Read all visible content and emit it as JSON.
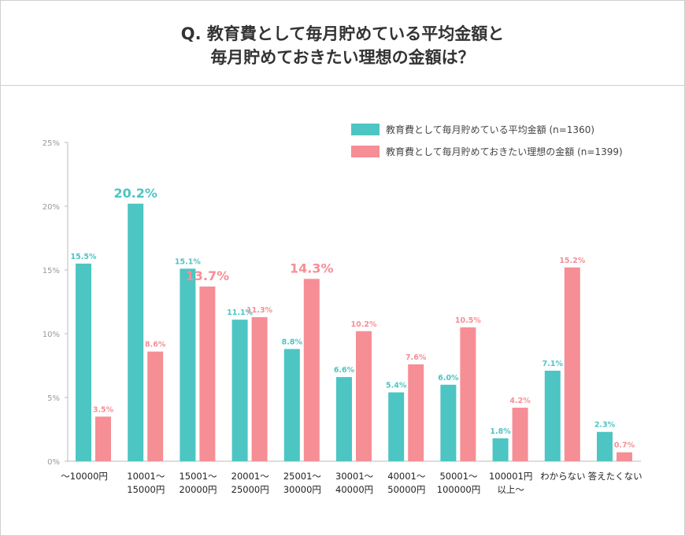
{
  "chart_data": {
    "type": "bar",
    "title_lines": [
      "Q. 教育費として毎月貯めている平均金額と",
      "毎月貯めておきたい理想の金額は？"
    ],
    "categories": [
      [
        "～10000円"
      ],
      [
        "10001～",
        "15000円"
      ],
      [
        "15001～",
        "20000円"
      ],
      [
        "20001～",
        "25000円"
      ],
      [
        "25001～",
        "30000円"
      ],
      [
        "30001～",
        "40000円"
      ],
      [
        "40001～",
        "50000円"
      ],
      [
        "50001～",
        "100000円"
      ],
      [
        "100001円",
        "以上～"
      ],
      [
        "わからない"
      ],
      [
        "答えたくない"
      ]
    ],
    "series": [
      {
        "name": "教育費として毎月貯めている平均金額 (n=1360)",
        "color": "#4cc5c3",
        "values": [
          15.5,
          20.2,
          15.1,
          11.1,
          8.8,
          6.6,
          5.4,
          6.0,
          1.8,
          7.1,
          2.3
        ],
        "highlighted": [
          false,
          true,
          false,
          false,
          false,
          false,
          false,
          false,
          false,
          false,
          false
        ]
      },
      {
        "name": "教育費として毎月貯めておきたい理想の金額 (n=1399)",
        "color": "#f68e95",
        "values": [
          3.5,
          8.6,
          13.7,
          11.3,
          14.3,
          10.2,
          7.6,
          10.5,
          4.2,
          15.2,
          0.7
        ],
        "highlighted": [
          false,
          false,
          true,
          false,
          true,
          false,
          false,
          false,
          false,
          false,
          false
        ]
      }
    ],
    "ylim": [
      0,
      25
    ],
    "yticks": [
      "0%",
      "5%",
      "10%",
      "15%",
      "20%",
      "25%"
    ],
    "value_suffix": "%",
    "grid": false,
    "legend_position": "top-right"
  }
}
